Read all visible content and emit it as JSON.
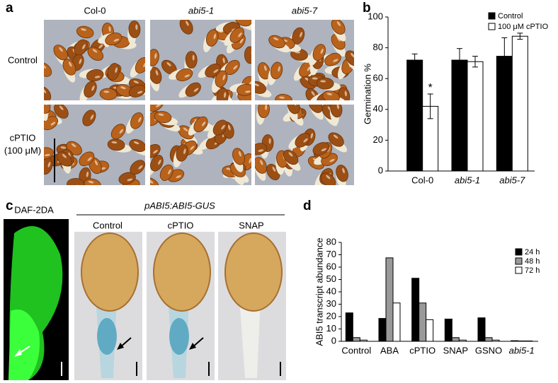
{
  "panels": {
    "a": "a",
    "b": "b",
    "c": "c",
    "d": "d"
  },
  "panel_a": {
    "columns": [
      "Col-0",
      "abi5-1",
      "abi5-7"
    ],
    "rows": [
      "Control",
      "cPTIO",
      "(100 μM)"
    ]
  },
  "panel_c": {
    "left_label": "DAF-2DA",
    "construct": "pABI5:ABI5-GUS",
    "columns": [
      "Control",
      "cPTIO",
      "SNAP"
    ]
  },
  "chart_data": [
    {
      "type": "bar",
      "y_label": "Germination %",
      "categories": [
        "Col-0",
        "abi5-1",
        "abi5-7"
      ],
      "series": [
        {
          "name": "Control",
          "color": "#000000",
          "values": [
            72,
            72,
            74.5
          ],
          "errors": [
            4,
            7.5,
            12
          ]
        },
        {
          "name": "100 μM cPTIO",
          "color": "#ffffff",
          "values": [
            42,
            71,
            87.5
          ],
          "errors": [
            8,
            3.5,
            2
          ]
        }
      ],
      "annotations": [
        "*"
      ],
      "ylim": [
        0,
        100
      ],
      "yticks": [
        0,
        20,
        40,
        60,
        80,
        100
      ],
      "legend": "top-right"
    },
    {
      "type": "bar",
      "y_label": "ABI5 transcript abundance",
      "categories": [
        "Control",
        "ABA",
        "cPTIO",
        "SNAP",
        "GSNO",
        "abi5-1"
      ],
      "series": [
        {
          "name": "24 h",
          "color": "#000000",
          "values": [
            23,
            18.5,
            51,
            18,
            19,
            0.5
          ]
        },
        {
          "name": "48 h",
          "color": "#999999",
          "values": [
            3,
            67.5,
            31,
            3,
            3,
            0.3
          ]
        },
        {
          "name": "72 h",
          "color": "#ffffff",
          "values": [
            1,
            31,
            17.5,
            1,
            1,
            0.3
          ]
        }
      ],
      "ylim": [
        0,
        80
      ],
      "yticks": [
        0,
        10,
        20,
        30,
        40,
        50,
        60,
        70,
        80
      ],
      "legend": "top-right"
    }
  ]
}
